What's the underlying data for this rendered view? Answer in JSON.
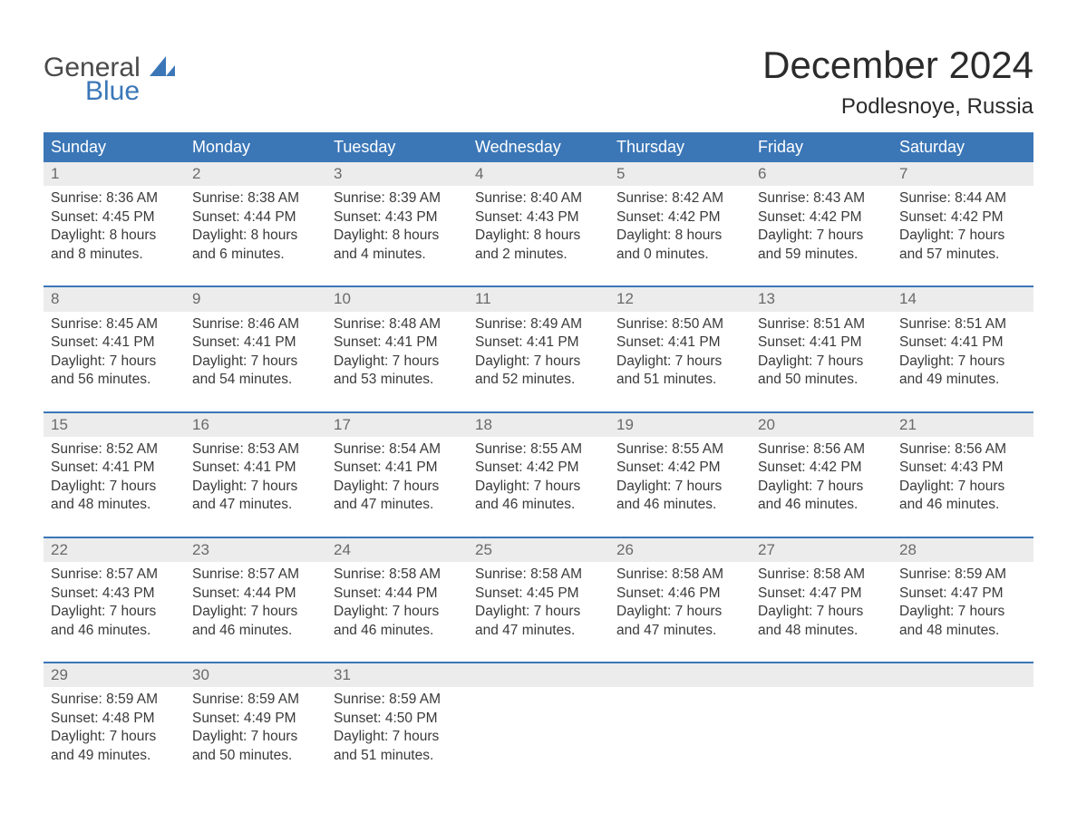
{
  "logo": {
    "word1": "General",
    "word2": "Blue",
    "word1_color": "#4a4a4a",
    "word2_color": "#3b77b7",
    "triangle_color": "#3b77b7"
  },
  "title": "December 2024",
  "location": "Podlesnoye, Russia",
  "colors": {
    "header_bg": "#3b77b7",
    "header_text": "#ffffff",
    "daynum_bg": "#ececec",
    "daynum_text": "#6a6a6a",
    "body_text": "#3a3a3a",
    "week_border": "#3b77b7",
    "page_bg": "#ffffff"
  },
  "typography": {
    "title_size_pt": 32,
    "location_size_pt": 18,
    "header_size_pt": 14,
    "cell_size_pt": 12
  },
  "calendar": {
    "type": "table",
    "columns": [
      "Sunday",
      "Monday",
      "Tuesday",
      "Wednesday",
      "Thursday",
      "Friday",
      "Saturday"
    ],
    "weeks": [
      [
        {
          "n": "1",
          "sunrise": "Sunrise: 8:36 AM",
          "sunset": "Sunset: 4:45 PM",
          "d1": "Daylight: 8 hours",
          "d2": "and 8 minutes."
        },
        {
          "n": "2",
          "sunrise": "Sunrise: 8:38 AM",
          "sunset": "Sunset: 4:44 PM",
          "d1": "Daylight: 8 hours",
          "d2": "and 6 minutes."
        },
        {
          "n": "3",
          "sunrise": "Sunrise: 8:39 AM",
          "sunset": "Sunset: 4:43 PM",
          "d1": "Daylight: 8 hours",
          "d2": "and 4 minutes."
        },
        {
          "n": "4",
          "sunrise": "Sunrise: 8:40 AM",
          "sunset": "Sunset: 4:43 PM",
          "d1": "Daylight: 8 hours",
          "d2": "and 2 minutes."
        },
        {
          "n": "5",
          "sunrise": "Sunrise: 8:42 AM",
          "sunset": "Sunset: 4:42 PM",
          "d1": "Daylight: 8 hours",
          "d2": "and 0 minutes."
        },
        {
          "n": "6",
          "sunrise": "Sunrise: 8:43 AM",
          "sunset": "Sunset: 4:42 PM",
          "d1": "Daylight: 7 hours",
          "d2": "and 59 minutes."
        },
        {
          "n": "7",
          "sunrise": "Sunrise: 8:44 AM",
          "sunset": "Sunset: 4:42 PM",
          "d1": "Daylight: 7 hours",
          "d2": "and 57 minutes."
        }
      ],
      [
        {
          "n": "8",
          "sunrise": "Sunrise: 8:45 AM",
          "sunset": "Sunset: 4:41 PM",
          "d1": "Daylight: 7 hours",
          "d2": "and 56 minutes."
        },
        {
          "n": "9",
          "sunrise": "Sunrise: 8:46 AM",
          "sunset": "Sunset: 4:41 PM",
          "d1": "Daylight: 7 hours",
          "d2": "and 54 minutes."
        },
        {
          "n": "10",
          "sunrise": "Sunrise: 8:48 AM",
          "sunset": "Sunset: 4:41 PM",
          "d1": "Daylight: 7 hours",
          "d2": "and 53 minutes."
        },
        {
          "n": "11",
          "sunrise": "Sunrise: 8:49 AM",
          "sunset": "Sunset: 4:41 PM",
          "d1": "Daylight: 7 hours",
          "d2": "and 52 minutes."
        },
        {
          "n": "12",
          "sunrise": "Sunrise: 8:50 AM",
          "sunset": "Sunset: 4:41 PM",
          "d1": "Daylight: 7 hours",
          "d2": "and 51 minutes."
        },
        {
          "n": "13",
          "sunrise": "Sunrise: 8:51 AM",
          "sunset": "Sunset: 4:41 PM",
          "d1": "Daylight: 7 hours",
          "d2": "and 50 minutes."
        },
        {
          "n": "14",
          "sunrise": "Sunrise: 8:51 AM",
          "sunset": "Sunset: 4:41 PM",
          "d1": "Daylight: 7 hours",
          "d2": "and 49 minutes."
        }
      ],
      [
        {
          "n": "15",
          "sunrise": "Sunrise: 8:52 AM",
          "sunset": "Sunset: 4:41 PM",
          "d1": "Daylight: 7 hours",
          "d2": "and 48 minutes."
        },
        {
          "n": "16",
          "sunrise": "Sunrise: 8:53 AM",
          "sunset": "Sunset: 4:41 PM",
          "d1": "Daylight: 7 hours",
          "d2": "and 47 minutes."
        },
        {
          "n": "17",
          "sunrise": "Sunrise: 8:54 AM",
          "sunset": "Sunset: 4:41 PM",
          "d1": "Daylight: 7 hours",
          "d2": "and 47 minutes."
        },
        {
          "n": "18",
          "sunrise": "Sunrise: 8:55 AM",
          "sunset": "Sunset: 4:42 PM",
          "d1": "Daylight: 7 hours",
          "d2": "and 46 minutes."
        },
        {
          "n": "19",
          "sunrise": "Sunrise: 8:55 AM",
          "sunset": "Sunset: 4:42 PM",
          "d1": "Daylight: 7 hours",
          "d2": "and 46 minutes."
        },
        {
          "n": "20",
          "sunrise": "Sunrise: 8:56 AM",
          "sunset": "Sunset: 4:42 PM",
          "d1": "Daylight: 7 hours",
          "d2": "and 46 minutes."
        },
        {
          "n": "21",
          "sunrise": "Sunrise: 8:56 AM",
          "sunset": "Sunset: 4:43 PM",
          "d1": "Daylight: 7 hours",
          "d2": "and 46 minutes."
        }
      ],
      [
        {
          "n": "22",
          "sunrise": "Sunrise: 8:57 AM",
          "sunset": "Sunset: 4:43 PM",
          "d1": "Daylight: 7 hours",
          "d2": "and 46 minutes."
        },
        {
          "n": "23",
          "sunrise": "Sunrise: 8:57 AM",
          "sunset": "Sunset: 4:44 PM",
          "d1": "Daylight: 7 hours",
          "d2": "and 46 minutes."
        },
        {
          "n": "24",
          "sunrise": "Sunrise: 8:58 AM",
          "sunset": "Sunset: 4:44 PM",
          "d1": "Daylight: 7 hours",
          "d2": "and 46 minutes."
        },
        {
          "n": "25",
          "sunrise": "Sunrise: 8:58 AM",
          "sunset": "Sunset: 4:45 PM",
          "d1": "Daylight: 7 hours",
          "d2": "and 47 minutes."
        },
        {
          "n": "26",
          "sunrise": "Sunrise: 8:58 AM",
          "sunset": "Sunset: 4:46 PM",
          "d1": "Daylight: 7 hours",
          "d2": "and 47 minutes."
        },
        {
          "n": "27",
          "sunrise": "Sunrise: 8:58 AM",
          "sunset": "Sunset: 4:47 PM",
          "d1": "Daylight: 7 hours",
          "d2": "and 48 minutes."
        },
        {
          "n": "28",
          "sunrise": "Sunrise: 8:59 AM",
          "sunset": "Sunset: 4:47 PM",
          "d1": "Daylight: 7 hours",
          "d2": "and 48 minutes."
        }
      ],
      [
        {
          "n": "29",
          "sunrise": "Sunrise: 8:59 AM",
          "sunset": "Sunset: 4:48 PM",
          "d1": "Daylight: 7 hours",
          "d2": "and 49 minutes."
        },
        {
          "n": "30",
          "sunrise": "Sunrise: 8:59 AM",
          "sunset": "Sunset: 4:49 PM",
          "d1": "Daylight: 7 hours",
          "d2": "and 50 minutes."
        },
        {
          "n": "31",
          "sunrise": "Sunrise: 8:59 AM",
          "sunset": "Sunset: 4:50 PM",
          "d1": "Daylight: 7 hours",
          "d2": "and 51 minutes."
        },
        null,
        null,
        null,
        null
      ]
    ]
  }
}
